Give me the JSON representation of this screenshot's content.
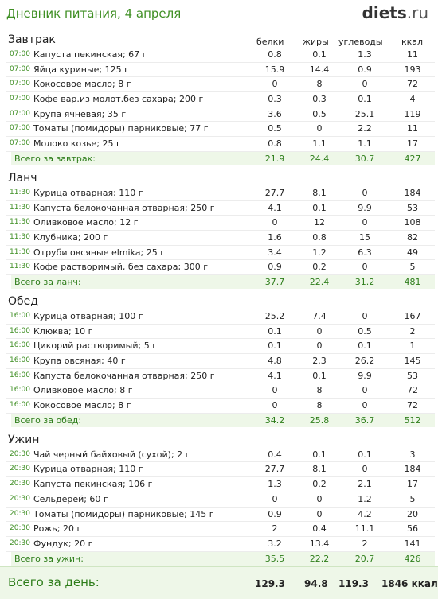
{
  "header": {
    "title": "Дневник питания, 4 апреля",
    "logo_main": "diets",
    "logo_tld": ".ru"
  },
  "columns": {
    "protein": "белки",
    "fat": "жиры",
    "carbs": "углеводы",
    "kcal": "ккал"
  },
  "meals": [
    {
      "name": "Завтрак",
      "total_label": "Всего за завтрак:",
      "totals": {
        "p": "21.9",
        "f": "24.4",
        "c": "30.7",
        "k": "427"
      },
      "items": [
        {
          "time": "07:00",
          "food": "Капуста пекинская; 67 г",
          "p": "0.8",
          "f": "0.1",
          "c": "1.3",
          "k": "11"
        },
        {
          "time": "07:00",
          "food": "Яйца куриные; 125 г",
          "p": "15.9",
          "f": "14.4",
          "c": "0.9",
          "k": "193"
        },
        {
          "time": "07:00",
          "food": "Кокосовое масло; 8 г",
          "p": "0",
          "f": "8",
          "c": "0",
          "k": "72"
        },
        {
          "time": "07:00",
          "food": "Кофе вар.из молот.без сахара; 200 г",
          "p": "0.3",
          "f": "0.3",
          "c": "0.1",
          "k": "4"
        },
        {
          "time": "07:00",
          "food": "Крупа ячневая; 35 г",
          "p": "3.6",
          "f": "0.5",
          "c": "25.1",
          "k": "119"
        },
        {
          "time": "07:00",
          "food": "Томаты (помидоры) парниковые; 77 г",
          "p": "0.5",
          "f": "0",
          "c": "2.2",
          "k": "11"
        },
        {
          "time": "07:00",
          "food": "Молоко козье; 25 г",
          "p": "0.8",
          "f": "1.1",
          "c": "1.1",
          "k": "17"
        }
      ]
    },
    {
      "name": "Ланч",
      "total_label": "Всего за ланч:",
      "totals": {
        "p": "37.7",
        "f": "22.4",
        "c": "31.2",
        "k": "481"
      },
      "items": [
        {
          "time": "11:30",
          "food": "Курица отварная; 110 г",
          "p": "27.7",
          "f": "8.1",
          "c": "0",
          "k": "184"
        },
        {
          "time": "11:30",
          "food": "Капуста белокочанная отварная; 250 г",
          "p": "4.1",
          "f": "0.1",
          "c": "9.9",
          "k": "53"
        },
        {
          "time": "11:30",
          "food": "Оливковое масло; 12 г",
          "p": "0",
          "f": "12",
          "c": "0",
          "k": "108"
        },
        {
          "time": "11:30",
          "food": "Клубника; 200 г",
          "p": "1.6",
          "f": "0.8",
          "c": "15",
          "k": "82"
        },
        {
          "time": "11:30",
          "food": "Отруби овсяные elmika; 25 г",
          "p": "3.4",
          "f": "1.2",
          "c": "6.3",
          "k": "49"
        },
        {
          "time": "11:30",
          "food": "Кофе растворимый, без сахара; 300 г",
          "p": "0.9",
          "f": "0.2",
          "c": "0",
          "k": "5"
        }
      ]
    },
    {
      "name": "Обед",
      "total_label": "Всего за обед:",
      "totals": {
        "p": "34.2",
        "f": "25.8",
        "c": "36.7",
        "k": "512"
      },
      "items": [
        {
          "time": "16:00",
          "food": "Курица отварная; 100 г",
          "p": "25.2",
          "f": "7.4",
          "c": "0",
          "k": "167"
        },
        {
          "time": "16:00",
          "food": "Клюква; 10 г",
          "p": "0.1",
          "f": "0",
          "c": "0.5",
          "k": "2"
        },
        {
          "time": "16:00",
          "food": "Цикорий растворимый; 5 г",
          "p": "0.1",
          "f": "0",
          "c": "0.1",
          "k": "1"
        },
        {
          "time": "16:00",
          "food": "Крупа овсяная; 40 г",
          "p": "4.8",
          "f": "2.3",
          "c": "26.2",
          "k": "145"
        },
        {
          "time": "16:00",
          "food": "Капуста белокочанная отварная; 250 г",
          "p": "4.1",
          "f": "0.1",
          "c": "9.9",
          "k": "53"
        },
        {
          "time": "16:00",
          "food": "Оливковое масло; 8 г",
          "p": "0",
          "f": "8",
          "c": "0",
          "k": "72"
        },
        {
          "time": "16:00",
          "food": "Кокосовое масло; 8 г",
          "p": "0",
          "f": "8",
          "c": "0",
          "k": "72"
        }
      ]
    },
    {
      "name": "Ужин",
      "total_label": "Всего за ужин:",
      "totals": {
        "p": "35.5",
        "f": "22.2",
        "c": "20.7",
        "k": "426"
      },
      "items": [
        {
          "time": "20:30",
          "food": "Чай черный байховый (сухой); 2 г",
          "p": "0.4",
          "f": "0.1",
          "c": "0.1",
          "k": "3"
        },
        {
          "time": "20:30",
          "food": "Курица отварная; 110 г",
          "p": "27.7",
          "f": "8.1",
          "c": "0",
          "k": "184"
        },
        {
          "time": "20:30",
          "food": "Капуста пекинская; 106 г",
          "p": "1.3",
          "f": "0.2",
          "c": "2.1",
          "k": "17"
        },
        {
          "time": "20:30",
          "food": "Сельдерей; 60 г",
          "p": "0",
          "f": "0",
          "c": "1.2",
          "k": "5"
        },
        {
          "time": "20:30",
          "food": "Томаты (помидоры) парниковые; 145 г",
          "p": "0.9",
          "f": "0",
          "c": "4.2",
          "k": "20"
        },
        {
          "time": "20:30",
          "food": "Рожь; 20 г",
          "p": "2",
          "f": "0.4",
          "c": "11.1",
          "k": "56"
        },
        {
          "time": "20:30",
          "food": "Фундук; 20 г",
          "p": "3.2",
          "f": "13.4",
          "c": "2",
          "k": "141"
        }
      ]
    }
  ],
  "day_total": {
    "label": "Всего за день:",
    "p": "129.3",
    "f": "94.8",
    "c": "119.3",
    "k": "1846 ккал"
  }
}
